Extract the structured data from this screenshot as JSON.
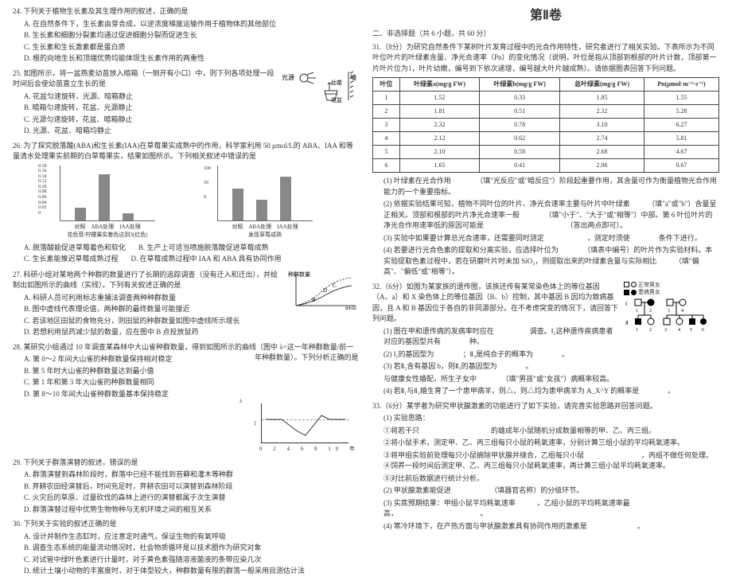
{
  "left": {
    "q24": {
      "stem": "24. 下列关于植物生长素及其生理作用的叙述，正确的是",
      "opts": [
        "A. 在自然条件下，生长素由芽合成，以逆浓度梯度运输作用于植物体的其他部位",
        "B. 生长素和细胞分裂素均通过促进细胞分裂而促进生长",
        "C. 生长素和生长激素都是蛋白质",
        "D. 根的向地生长和顶端优势均能体现生长素作用的两重性"
      ]
    },
    "q25": {
      "stem": "25. 如图所示，将一盆燕麦幼苗放入暗箱（一侧开有小口）中，则下列各项处理一段时间后会使幼苗直立生长的是",
      "opts": [
        "A. 花盆匀速旋转，光源、暗箱静止",
        "B. 暗箱匀速旋转，花盆、光源静止",
        "C. 光源匀速旋转，花盆、暗箱静止",
        "D. 光源、花盆、暗箱均静止"
      ],
      "illus": {
        "light": "光源",
        "seedling": "幼苗",
        "pot": "花盆",
        "wall": "墙"
      }
    },
    "q26": {
      "stem": "26. 为了探究脱落酸(ABA)和生长素(IAA)在草莓果实成熟中的作用，科学家利用 50 μmol/L的 ABA、IAA 和等量清水处理果实前期的白草莓果实，结果如图所示。下列相关叙述中错误的是",
      "opts": [
        "A. 脱落酸能促进草莓着色和软化",
        "B. 生产上可适当喷施脱落酸促进草莓成熟",
        "C. 生长素能推迟草莓成熟过程",
        "D. 在草莓成熟过程中 IAA 和 ABA 具有协同作用"
      ],
      "chart1": {
        "ylabel": "花色苷",
        "yvals": [
          "0.18",
          "0.16",
          "0.14",
          "0.12",
          "0.10",
          "0.08",
          "0.06",
          "0.04",
          "0.02",
          "0"
        ],
        "xlabels": [
          "对照",
          "ABA处理",
          "IAA处理"
        ],
        "bars": [
          0.04,
          0.17,
          0.02
        ]
      },
      "chart2": {
        "ylabel": "（上发果实硬度）",
        "xlabels": [
          "对照",
          "ABA处理",
          "IAA处理"
        ],
        "bars": [
          60,
          40,
          90
        ]
      }
    },
    "q27": {
      "stem": "27. 科研小组对某地两个种群的数量进行了长期的追踪调查（没有迁入和迁出），并绘制出如图所示的曲线（实线）。下列有关叙述正确的是",
      "opts": [
        "A. 科研人员可利用标志重捕法调查两种种群数量",
        "B. 图中虚线代表理论值，两种群的最终数量可能接近",
        "C. 若该地区田鼠的食物充分，则田鼠的种群数量如图中虚线所示增长",
        "D. 若想利用鼠药减少鼠的数量，应在图中 B 点投放鼠药"
      ],
      "illus": {
        "y": "种群数量",
        "x": "时间",
        "labels": [
          "B",
          "C",
          "D"
        ]
      }
    },
    "q28": {
      "stem": "28. 某研究小组通过 10 年调查某森林中大山雀种群数量，得到如图所示的曲线（图中 λ=这一年种群数量/前一年种群数量）。下列分析正确的是",
      "opts": [
        "A. 第 0～2 年间大山雀的种群数量保持相对稳定",
        "B. 第 5 年时大山雀的种群数量达到最小值",
        "C. 第 1 年和第 3 年大山雀的种群数量相同",
        "D. 第 8～10 年间大山雀种群数量基本保持稳定"
      ],
      "illus": {
        "ylabel": "λ",
        "yvals": [
          "1"
        ],
        "xticks": "0  2  4  6  8  10 年"
      }
    },
    "q29": {
      "stem": "29. 下列关于群落演替的叙述，错误的是",
      "opts": [
        "A. 群落演替到森林阶段时，群落中已经不能找到苔藓和灌木等种群",
        "B. 弃耕农田经演替后，时间充足时，弃耕农田可以演替到森林阶段",
        "C. 火灾后的草原、过量砍伐的森林上进行的演替都属于次生演替",
        "D. 群落演替过程中优势生物物种与无机环境之间的相互关系"
      ]
    },
    "q30": {
      "stem": "30. 下列关于实验的叙述正确的是",
      "opts": [
        "A. 设计并制作生态缸时，应注意定时通气，保证生物的有氧呼吸",
        "B. 调查生态系统的能量流动情况时，社会物质循环是以技术圈作为研究对象",
        "C. 对试管中绿叶色素进行计量时，对于黄色素强随溶液菌液的条带应染几次",
        "D. 统计土壤小动物的丰富度时，对于体型较大，种群数量有限的群落一般采用目测估计法"
      ]
    }
  },
  "right": {
    "title": "第Ⅱ卷",
    "nonchoice": "二、非选择题（共 6 小题，共 60 分）",
    "q31": {
      "stem": "31.（8分）为研究自然条件下某树叶片发育过程中的光合作用特性，研究者进行了相关实验。下表所示为不同叶位叶片的叶绿素含量、净光合速率（Pn）的变化情况（说明，叶位是指从顶部到根部的叶片计数，顶部第一片叶片位为1，叶片幼嫩，编号到下依次递增，编号越大叶片越成熟）。请依据图表回答下列问题。",
      "table": {
        "headers": [
          "叶位",
          "叶绿素a(mg/g FW)",
          "叶绿素b(mg/g FW)",
          "总叶绿素(mg/g FW)",
          "Pn(μmol·m⁻²·s⁻¹)"
        ],
        "rows": [
          [
            "1",
            "1.52",
            "0.33",
            "1.85",
            "1.55"
          ],
          [
            "2",
            "1.81",
            "0.51",
            "2.32",
            "5.28"
          ],
          [
            "3",
            "2.32",
            "0.78",
            "3.10",
            "6.27"
          ],
          [
            "4",
            "2.12",
            "0.62",
            "2.74",
            "5.81"
          ],
          [
            "5",
            "2.10",
            "0.58",
            "2.68",
            "4.67"
          ],
          [
            "6",
            "1.65",
            "0.41",
            "2.06",
            "0.67"
          ]
        ]
      },
      "subs": [
        "(1) 叶绿素在光合作用　　　　（填\"光反应\"或\"暗反应\"）阶段起重要作用，其含量可作为衡量植物光合作用能力的一个重要指标。",
        "(2) 依据实验结果可知，植物不同叶位的叶片、净光合速率主要与叶片中叶绿素　　　（填\"a\"或\"b\"）含量呈正相关。顶部和根部的叶片净光合速率一般　　　　（填\"小于\"、\"大于\"或\"相等\"）中部。第 6 叶位叶片的净光合作用速率低的原因可能是　　　　　　　　　　　　（答出两点即可）。",
        "(3) 实验中如果要计算总光合速率，还需要同时测定　　　　　　，测定时须使　　　　条件下进行。",
        "(4) 若要进行光合色素的提取和分离实验，应选择叶位为　　　　（填表中编号）的叶片作为实验材料。本实验提取色素过程中，若在研磨叶片时未加 SiO₂，则提取出来的叶绿素含量与实际相比　　　（填\"偏高\"、\"偏低\"或\"相等\"）。"
      ]
    },
    "q32": {
      "stem": "32.（6分）如图为某家族的遗传图，该族还传有某常染色体上的等位基因（A、a）和 X 染色体上的等位基因（B、b）控制，其中基因 B 因均为致病基因，且 A 和 B 基因位于各自的非同源部分。在不考虑突变的情况下，请回答下列问题。",
      "subs": [
        "(1) 图在甲和遗传病的发病率时应在　　　　　调查。Ⅰ₂这种遗传疾病患者对应的基因型共有　　　　种。",
        "(2) Ⅰ₁的基因型为　　　　；Ⅱ₃是纯合子的概率为　　　　。",
        "(3) 若Ⅱ₂含有基因 b，则Ⅱ₁的基因型为　　　　。",
        "与健康女性婚配，所生子女中　　　　（填\"男孩\"或\"女孩\"）病概率较高。",
        "(4) 若Ⅱ₁与Ⅱ₂婚生育了一个患甲病羊，则△，则△均为患甲病羊为 A_X^Y 的概率是　　　　。"
      ],
      "legend": {
        "items": [
          {
            "shape": "sq",
            "fill": false,
            "label": "正常男女"
          },
          {
            "shape": "ci",
            "fill": false,
            "label": ""
          },
          {
            "shape": "sq",
            "fill": true,
            "label": "患病男女"
          },
          {
            "shape": "ci",
            "fill": true,
            "label": ""
          }
        ]
      }
    },
    "q33": {
      "stem": "33.（6分）某学者为研究甲状腺激素的功能进行了如下实验，请完善实验思路并回答问题。",
      "subs": [
        "(1) 实验思路：",
        "①将若干只　　　　　　　　　　的雄成年小鼠随机分成数量相等的甲、乙、丙三组。",
        "②将小鼠手术，测定甲、乙、丙三组每只小鼠的耗氧速率，分别计算三组小鼠的平均耗氧速率。",
        "③将甲组实验前处理每只小鼠摘除甲状腺并缝合，乙组每只小鼠　　　　　　　　，丙组不做任何处理。④饲养一段时间后测定甲、乙、丙三组每只小鼠耗氧速率，再计算三组小鼠平均耗氧速率。",
        "⑤对比前后数据进行统计分析。",
        "(2) 甲状腺激素能促进　　　　　　（填器官名称）的分级环节。",
        "(3) 实底预期结果：甲组小鼠平均耗氧速率　　　，乙组小鼠的平均耗氧速率最高，　　　　　　　　　　　　。",
        "(4) 寒冷环境下，在产热方面与甲状腺激素具有协同作用的激素是　　　　　　　。"
      ]
    }
  }
}
